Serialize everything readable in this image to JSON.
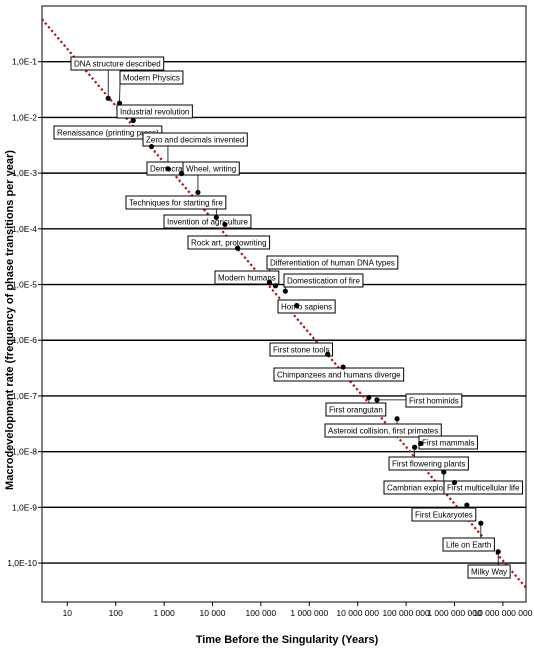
{
  "chart_data": {
    "type": "scatter",
    "xlabel": "Time Before the Singularity (Years)",
    "ylabel": "Macrodevelopment rate (frequency of phase transitions per year)",
    "x_scale": "log",
    "y_scale": "log",
    "xlim": [
      3,
      30000000000
    ],
    "ylim": [
      2e-11,
      1
    ],
    "grid": "horizontal",
    "x_ticks": [
      {
        "value": 10,
        "label": "10"
      },
      {
        "value": 100,
        "label": "100"
      },
      {
        "value": 1000,
        "label": "1 000"
      },
      {
        "value": 10000,
        "label": "10 000"
      },
      {
        "value": 100000,
        "label": "100 000"
      },
      {
        "value": 1000000,
        "label": "1 000 000"
      },
      {
        "value": 10000000,
        "label": "10 000 000"
      },
      {
        "value": 100000000,
        "label": "100 000 000"
      },
      {
        "value": 1000000000,
        "label": "1 000 000 000"
      },
      {
        "value": 10000000000,
        "label": "10 000 000 000"
      }
    ],
    "y_ticks": [
      {
        "value": 0.1,
        "label": "1,0E-1"
      },
      {
        "value": 0.01,
        "label": "1,0E-2"
      },
      {
        "value": 0.001,
        "label": "1,0E-3"
      },
      {
        "value": 0.0001,
        "label": "1,0E-4"
      },
      {
        "value": 1e-05,
        "label": "1,0E-5"
      },
      {
        "value": 1e-06,
        "label": "1,0E-6"
      },
      {
        "value": 1e-07,
        "label": "1,0E-7"
      },
      {
        "value": 1e-08,
        "label": "1,0E-8"
      },
      {
        "value": 1e-09,
        "label": "1,0E-9"
      },
      {
        "value": 1e-10,
        "label": "1,0E-10"
      }
    ],
    "trend_line": {
      "style": "dotted",
      "color": "#b01010",
      "x": [
        3,
        30000000000
      ],
      "y": [
        0.58,
        3.6e-11
      ]
    },
    "points": [
      {
        "label": "DNA structure described",
        "x": 70,
        "y": 0.022
      },
      {
        "label": "Modern Physics",
        "x": 120,
        "y": 0.018
      },
      {
        "label": "Industrial revolution",
        "x": 230,
        "y": 0.0088
      },
      {
        "label": "Renaissance (printing press)",
        "x": 550,
        "y": 0.003
      },
      {
        "label": "Zero and decimals invented",
        "x": 1200,
        "y": 0.0012
      },
      {
        "label": "Democracy",
        "x": 2300,
        "y": 0.00098
      },
      {
        "label": "Wheel, writing",
        "x": 5000,
        "y": 0.00045
      },
      {
        "label": "Techniques for starting fire",
        "x": 12000,
        "y": 0.00016
      },
      {
        "label": "Invention of agriculture",
        "x": 18000,
        "y": 0.00012
      },
      {
        "label": "Rock art, protowriting",
        "x": 33000,
        "y": 4.5e-05
      },
      {
        "label": "Differentiation of human DNA types",
        "x": 150000,
        "y": 1.1e-05
      },
      {
        "label": "Modern humans",
        "x": 200000,
        "y": 9.5e-06
      },
      {
        "label": "Domestication of fire",
        "x": 320000,
        "y": 7.6e-06
      },
      {
        "label": "Homo sapiens",
        "x": 550000,
        "y": 4.2e-06
      },
      {
        "label": "First stone tools",
        "x": 2400000,
        "y": 5.6e-07
      },
      {
        "label": "Chimpanzees and humans diverge",
        "x": 5000000,
        "y": 3.3e-07
      },
      {
        "label": "First hominids",
        "x": 25000000,
        "y": 8.5e-08
      },
      {
        "label": "First orangutan",
        "x": 17000000,
        "y": 9.4e-08
      },
      {
        "label": "Asteroid collision, first primates",
        "x": 65000000,
        "y": 3.9e-08
      },
      {
        "label": "First mammals",
        "x": 200000000,
        "y": 1.4e-08
      },
      {
        "label": "First flowering plants",
        "x": 150000000,
        "y": 1.2e-08
      },
      {
        "label": "Cambrian explosion",
        "x": 600000000,
        "y": 4.3e-09
      },
      {
        "label": "First multicellular life",
        "x": 1000000000,
        "y": 2.8e-09
      },
      {
        "label": "First Eukaryotes",
        "x": 1800000000,
        "y": 1.1e-09
      },
      {
        "label": "Life on Earth",
        "x": 3500000000,
        "y": 5.2e-10
      },
      {
        "label": "Milky Way",
        "x": 8000000000,
        "y": 1.6e-10
      }
    ]
  }
}
